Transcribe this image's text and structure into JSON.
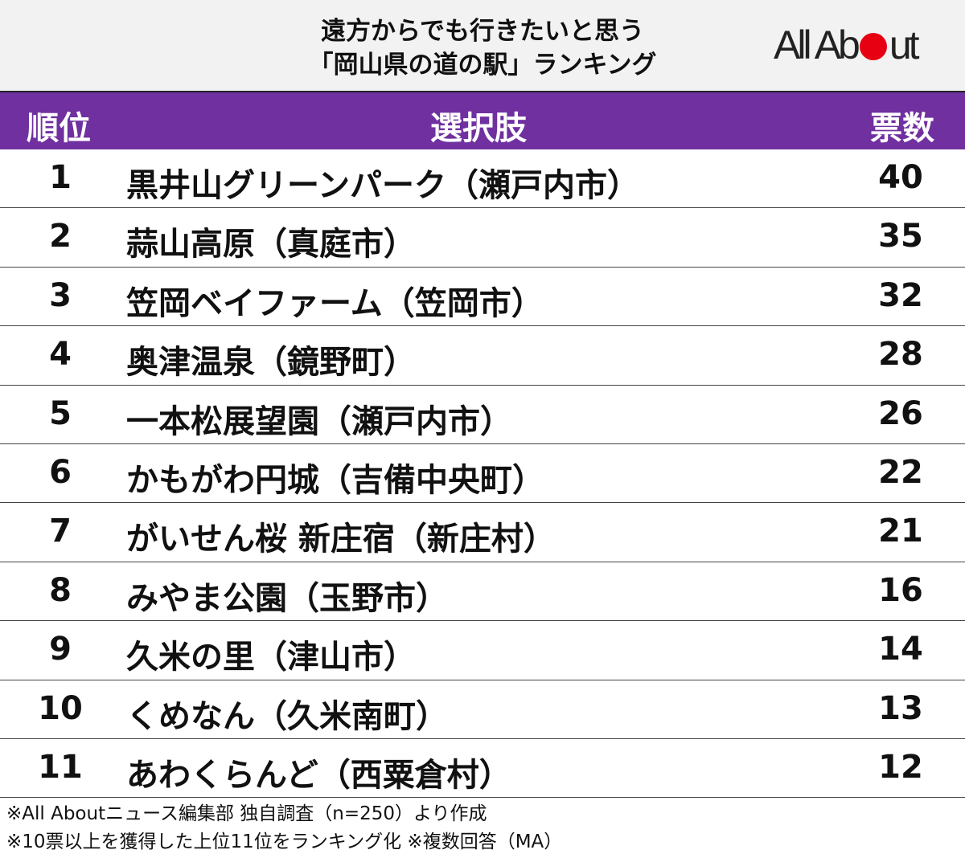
{
  "title": {
    "line1": "遠方からでも行きたいと思う",
    "line2": "「岡山県の道の駅」ランキング"
  },
  "logo": {
    "text": "All About",
    "accent_color": "#e60012"
  },
  "colors": {
    "header_bg": "#7030a0",
    "title_bg": "#f2f2f2"
  },
  "chart_data": {
    "type": "table",
    "columns": [
      "順位",
      "選択肢",
      "票数"
    ],
    "rows": [
      {
        "rank": "1",
        "name": "黒井山グリーンパーク（瀬戸内市）",
        "votes": "40"
      },
      {
        "rank": "2",
        "name": "蒜山高原（真庭市）",
        "votes": "35"
      },
      {
        "rank": "3",
        "name": "笠岡ベイファーム（笠岡市）",
        "votes": "32"
      },
      {
        "rank": "4",
        "name": "奥津温泉（鏡野町）",
        "votes": "28"
      },
      {
        "rank": "5",
        "name": "一本松展望園（瀬戸内市）",
        "votes": "26"
      },
      {
        "rank": "6",
        "name": "かもがわ円城（吉備中央町）",
        "votes": "22"
      },
      {
        "rank": "7",
        "name": "がいせん桜 新庄宿（新庄村）",
        "votes": "21"
      },
      {
        "rank": "8",
        "name": "みやま公園（玉野市）",
        "votes": "16"
      },
      {
        "rank": "9",
        "name": "久米の里（津山市）",
        "votes": "14"
      },
      {
        "rank": "10",
        "name": "くめなん（久米南町）",
        "votes": "13"
      },
      {
        "rank": "11",
        "name": "あわくらんど（西粟倉村）",
        "votes": "12"
      }
    ]
  },
  "notes": [
    "※All Aboutニュース編集部 独自調査（n=250）より作成",
    "※10票以上を獲得した上位11位をランキング化 ※複数回答（MA）"
  ]
}
